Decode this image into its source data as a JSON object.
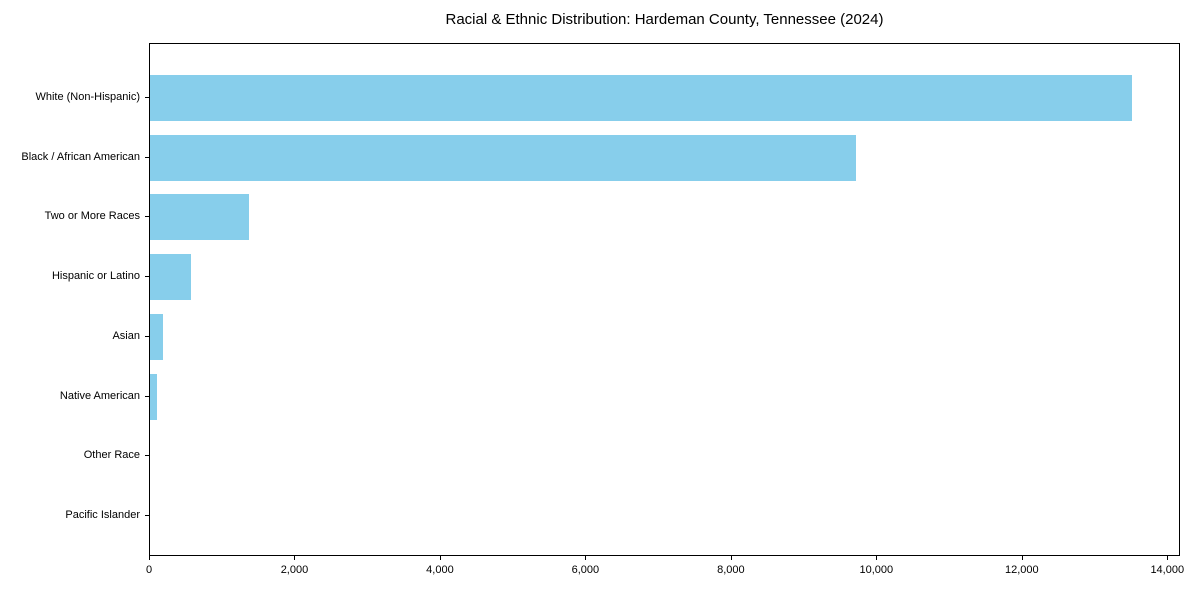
{
  "chart_data": {
    "type": "bar",
    "orientation": "horizontal",
    "title": "Racial & Ethnic Distribution: Hardeman County, Tennessee (2024)",
    "categories": [
      "White (Non-Hispanic)",
      "Black / African American",
      "Two or More Races",
      "Hispanic or Latino",
      "Asian",
      "Native American",
      "Other Race",
      "Pacific Islander"
    ],
    "values": [
      13500,
      9700,
      1360,
      560,
      180,
      100,
      0,
      0
    ],
    "xlabel": "",
    "ylabel": "",
    "xlim": [
      0,
      14175
    ],
    "xticks": {
      "values": [
        0,
        2000,
        4000,
        6000,
        8000,
        10000,
        12000,
        14000
      ],
      "labels": [
        "0",
        "2,000",
        "4,000",
        "6,000",
        "8,000",
        "10,000",
        "12,000",
        "14,000"
      ]
    },
    "bar_color": "#87CEEB",
    "grid": false,
    "legend_position": "none"
  }
}
